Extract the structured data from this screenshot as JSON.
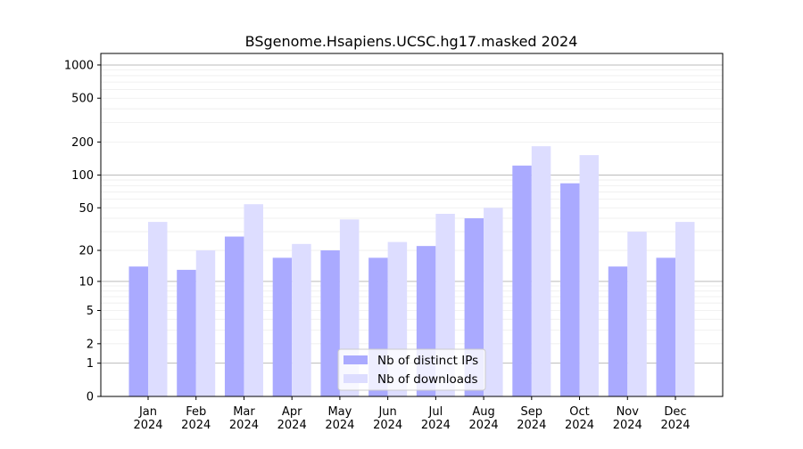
{
  "chart_data": {
    "type": "bar",
    "title": "BSgenome.Hsapiens.UCSC.hg17.masked 2024",
    "xlabel": "",
    "ylabel": "",
    "yscale": "log(1+y)",
    "ylim": [
      0,
      1200
    ],
    "grid": true,
    "legend_position": "bottom-center",
    "categories": [
      "Jan\n2024",
      "Feb\n2024",
      "Mar\n2024",
      "Apr\n2024",
      "May\n2024",
      "Jun\n2024",
      "Jul\n2024",
      "Aug\n2024",
      "Sep\n2024",
      "Oct\n2024",
      "Nov\n2024",
      "Dec\n2024"
    ],
    "ytick_labels": [
      "0",
      "1",
      "2",
      "5",
      "10",
      "20",
      "50",
      "100",
      "200",
      "500",
      "1000"
    ],
    "series": [
      {
        "name": "Nb of distinct IPs",
        "color": "#aaaaff",
        "values": [
          14,
          13,
          27,
          17,
          20,
          17,
          22,
          40,
          122,
          84,
          14,
          17
        ]
      },
      {
        "name": "Nb of downloads",
        "color": "#ddddff",
        "values": [
          37,
          20,
          54,
          23,
          39,
          24,
          44,
          50,
          183,
          152,
          30,
          37
        ]
      }
    ]
  }
}
